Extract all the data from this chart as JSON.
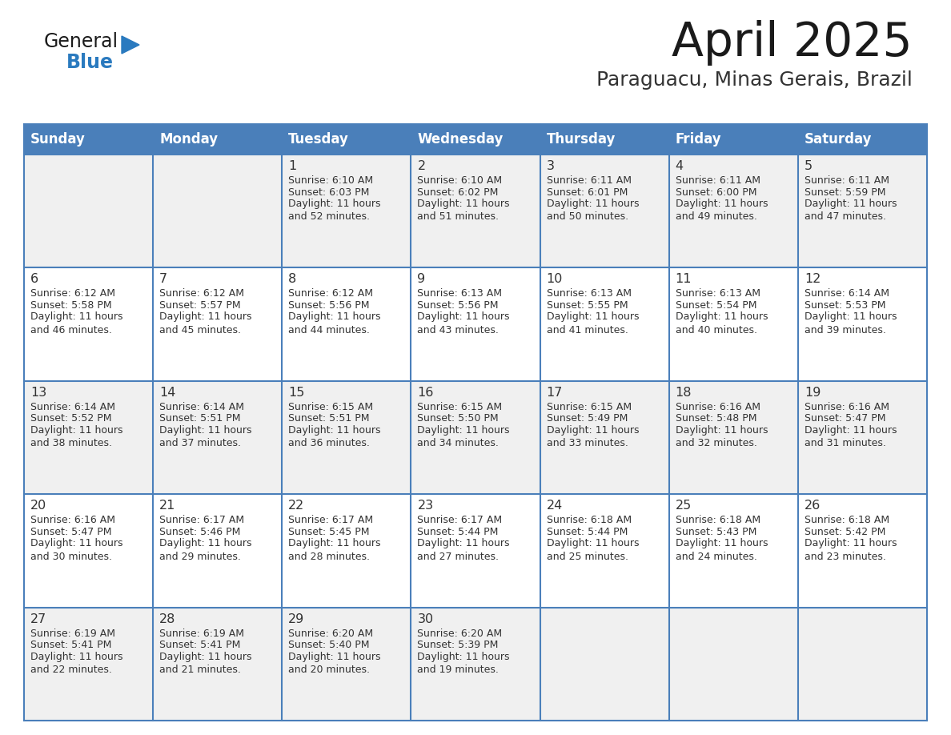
{
  "title": "April 2025",
  "subtitle": "Paraguacu, Minas Gerais, Brazil",
  "days_of_week": [
    "Sunday",
    "Monday",
    "Tuesday",
    "Wednesday",
    "Thursday",
    "Friday",
    "Saturday"
  ],
  "header_bg": "#4a7fba",
  "header_text": "#ffffff",
  "row_bg_light": "#f0f0f0",
  "row_bg_white": "#ffffff",
  "cell_text_color": "#333333",
  "border_color": "#4a7fba",
  "title_color": "#1a1a1a",
  "subtitle_color": "#333333",
  "logo_general_color": "#1a1a1a",
  "logo_blue_color": "#2a7abf",
  "logo_triangle_color": "#2a7abf",
  "calendar": [
    [
      {
        "day": "",
        "sunrise": "",
        "sunset": "",
        "daylight": ""
      },
      {
        "day": "",
        "sunrise": "",
        "sunset": "",
        "daylight": ""
      },
      {
        "day": "1",
        "sunrise": "Sunrise: 6:10 AM",
        "sunset": "Sunset: 6:03 PM",
        "daylight": "Daylight: 11 hours\nand 52 minutes."
      },
      {
        "day": "2",
        "sunrise": "Sunrise: 6:10 AM",
        "sunset": "Sunset: 6:02 PM",
        "daylight": "Daylight: 11 hours\nand 51 minutes."
      },
      {
        "day": "3",
        "sunrise": "Sunrise: 6:11 AM",
        "sunset": "Sunset: 6:01 PM",
        "daylight": "Daylight: 11 hours\nand 50 minutes."
      },
      {
        "day": "4",
        "sunrise": "Sunrise: 6:11 AM",
        "sunset": "Sunset: 6:00 PM",
        "daylight": "Daylight: 11 hours\nand 49 minutes."
      },
      {
        "day": "5",
        "sunrise": "Sunrise: 6:11 AM",
        "sunset": "Sunset: 5:59 PM",
        "daylight": "Daylight: 11 hours\nand 47 minutes."
      }
    ],
    [
      {
        "day": "6",
        "sunrise": "Sunrise: 6:12 AM",
        "sunset": "Sunset: 5:58 PM",
        "daylight": "Daylight: 11 hours\nand 46 minutes."
      },
      {
        "day": "7",
        "sunrise": "Sunrise: 6:12 AM",
        "sunset": "Sunset: 5:57 PM",
        "daylight": "Daylight: 11 hours\nand 45 minutes."
      },
      {
        "day": "8",
        "sunrise": "Sunrise: 6:12 AM",
        "sunset": "Sunset: 5:56 PM",
        "daylight": "Daylight: 11 hours\nand 44 minutes."
      },
      {
        "day": "9",
        "sunrise": "Sunrise: 6:13 AM",
        "sunset": "Sunset: 5:56 PM",
        "daylight": "Daylight: 11 hours\nand 43 minutes."
      },
      {
        "day": "10",
        "sunrise": "Sunrise: 6:13 AM",
        "sunset": "Sunset: 5:55 PM",
        "daylight": "Daylight: 11 hours\nand 41 minutes."
      },
      {
        "day": "11",
        "sunrise": "Sunrise: 6:13 AM",
        "sunset": "Sunset: 5:54 PM",
        "daylight": "Daylight: 11 hours\nand 40 minutes."
      },
      {
        "day": "12",
        "sunrise": "Sunrise: 6:14 AM",
        "sunset": "Sunset: 5:53 PM",
        "daylight": "Daylight: 11 hours\nand 39 minutes."
      }
    ],
    [
      {
        "day": "13",
        "sunrise": "Sunrise: 6:14 AM",
        "sunset": "Sunset: 5:52 PM",
        "daylight": "Daylight: 11 hours\nand 38 minutes."
      },
      {
        "day": "14",
        "sunrise": "Sunrise: 6:14 AM",
        "sunset": "Sunset: 5:51 PM",
        "daylight": "Daylight: 11 hours\nand 37 minutes."
      },
      {
        "day": "15",
        "sunrise": "Sunrise: 6:15 AM",
        "sunset": "Sunset: 5:51 PM",
        "daylight": "Daylight: 11 hours\nand 36 minutes."
      },
      {
        "day": "16",
        "sunrise": "Sunrise: 6:15 AM",
        "sunset": "Sunset: 5:50 PM",
        "daylight": "Daylight: 11 hours\nand 34 minutes."
      },
      {
        "day": "17",
        "sunrise": "Sunrise: 6:15 AM",
        "sunset": "Sunset: 5:49 PM",
        "daylight": "Daylight: 11 hours\nand 33 minutes."
      },
      {
        "day": "18",
        "sunrise": "Sunrise: 6:16 AM",
        "sunset": "Sunset: 5:48 PM",
        "daylight": "Daylight: 11 hours\nand 32 minutes."
      },
      {
        "day": "19",
        "sunrise": "Sunrise: 6:16 AM",
        "sunset": "Sunset: 5:47 PM",
        "daylight": "Daylight: 11 hours\nand 31 minutes."
      }
    ],
    [
      {
        "day": "20",
        "sunrise": "Sunrise: 6:16 AM",
        "sunset": "Sunset: 5:47 PM",
        "daylight": "Daylight: 11 hours\nand 30 minutes."
      },
      {
        "day": "21",
        "sunrise": "Sunrise: 6:17 AM",
        "sunset": "Sunset: 5:46 PM",
        "daylight": "Daylight: 11 hours\nand 29 minutes."
      },
      {
        "day": "22",
        "sunrise": "Sunrise: 6:17 AM",
        "sunset": "Sunset: 5:45 PM",
        "daylight": "Daylight: 11 hours\nand 28 minutes."
      },
      {
        "day": "23",
        "sunrise": "Sunrise: 6:17 AM",
        "sunset": "Sunset: 5:44 PM",
        "daylight": "Daylight: 11 hours\nand 27 minutes."
      },
      {
        "day": "24",
        "sunrise": "Sunrise: 6:18 AM",
        "sunset": "Sunset: 5:44 PM",
        "daylight": "Daylight: 11 hours\nand 25 minutes."
      },
      {
        "day": "25",
        "sunrise": "Sunrise: 6:18 AM",
        "sunset": "Sunset: 5:43 PM",
        "daylight": "Daylight: 11 hours\nand 24 minutes."
      },
      {
        "day": "26",
        "sunrise": "Sunrise: 6:18 AM",
        "sunset": "Sunset: 5:42 PM",
        "daylight": "Daylight: 11 hours\nand 23 minutes."
      }
    ],
    [
      {
        "day": "27",
        "sunrise": "Sunrise: 6:19 AM",
        "sunset": "Sunset: 5:41 PM",
        "daylight": "Daylight: 11 hours\nand 22 minutes."
      },
      {
        "day": "28",
        "sunrise": "Sunrise: 6:19 AM",
        "sunset": "Sunset: 5:41 PM",
        "daylight": "Daylight: 11 hours\nand 21 minutes."
      },
      {
        "day": "29",
        "sunrise": "Sunrise: 6:20 AM",
        "sunset": "Sunset: 5:40 PM",
        "daylight": "Daylight: 11 hours\nand 20 minutes."
      },
      {
        "day": "30",
        "sunrise": "Sunrise: 6:20 AM",
        "sunset": "Sunset: 5:39 PM",
        "daylight": "Daylight: 11 hours\nand 19 minutes."
      },
      {
        "day": "",
        "sunrise": "",
        "sunset": "",
        "daylight": ""
      },
      {
        "day": "",
        "sunrise": "",
        "sunset": "",
        "daylight": ""
      },
      {
        "day": "",
        "sunrise": "",
        "sunset": "",
        "daylight": ""
      }
    ]
  ]
}
